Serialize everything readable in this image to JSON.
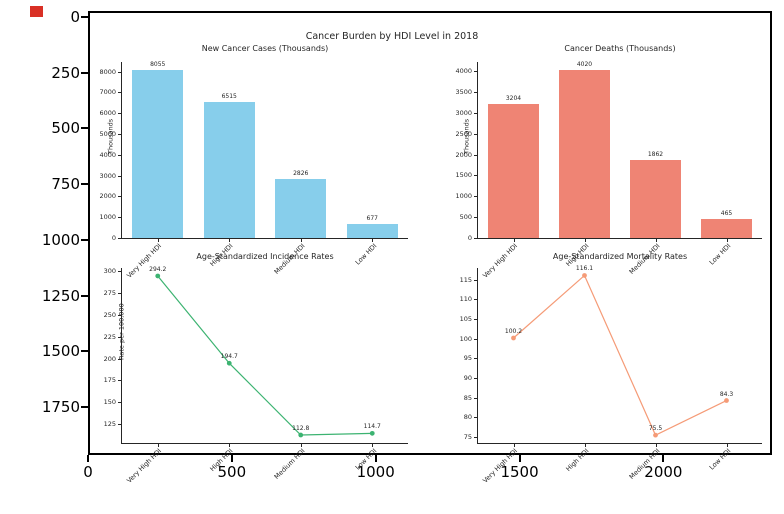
{
  "window": {
    "red_marker": "notebook-output-marker",
    "red_marker_color": "#d93025"
  },
  "figure": {
    "suptitle": "Cancer Burden by HDI Level in 2018",
    "outer_axes": {
      "x_tick_labels": [
        "0",
        "500",
        "1000",
        "1500",
        "2000"
      ],
      "y_tick_labels": [
        "0",
        "250",
        "500",
        "750",
        "1000",
        "1250",
        "1500",
        "1750"
      ]
    }
  },
  "chart_data": [
    {
      "type": "bar",
      "title": "New Cancer Cases (Thousands)",
      "ylabel": "Thousands",
      "categories": [
        "Very High HDI",
        "High HDI",
        "Medium HDI",
        "Low HDI"
      ],
      "values": [
        8055,
        6515,
        2826,
        677
      ],
      "value_labels": [
        "8055",
        "6515",
        "2826",
        "677"
      ],
      "yticks": [
        0,
        1000,
        2000,
        3000,
        4000,
        5000,
        6000,
        7000,
        8000
      ],
      "ylim": [
        0,
        8458
      ],
      "color": "#87CEEB",
      "grid": false,
      "legend": null
    },
    {
      "type": "bar",
      "title": "Cancer Deaths (Thousands)",
      "ylabel": "Thousands",
      "categories": [
        "Very High HDI",
        "High HDI",
        "Medium HDI",
        "Low HDI"
      ],
      "values": [
        3204,
        4020,
        1862,
        465
      ],
      "value_labels": [
        "3204",
        "4020",
        "1862",
        "465"
      ],
      "yticks": [
        0,
        500,
        1000,
        1500,
        2000,
        2500,
        3000,
        3500,
        4000
      ],
      "ylim": [
        0,
        4221
      ],
      "color": "#EF8474",
      "grid": false,
      "legend": null
    },
    {
      "type": "line",
      "title": "Age-Standardized Incidence Rates",
      "ylabel": "Rate per 100,000",
      "categories": [
        "Very High HDI",
        "High HDI",
        "Medium HDI",
        "Low HDI"
      ],
      "values": [
        294.2,
        194.7,
        112.8,
        114.7
      ],
      "value_labels": [
        "294.2",
        "194.7",
        "112.8",
        "114.7"
      ],
      "yticks": [
        125,
        150,
        175,
        200,
        225,
        250,
        275,
        300
      ],
      "ylim": [
        103.7,
        303.3
      ],
      "color": "#3CB371",
      "grid": false,
      "legend": null
    },
    {
      "type": "line",
      "title": "Age-Standardized Mortality Rates",
      "ylabel": "",
      "categories": [
        "Very High HDI",
        "High HDI",
        "Medium HDI",
        "Low HDI"
      ],
      "values": [
        100.2,
        116.1,
        75.5,
        84.3
      ],
      "value_labels": [
        "100.2",
        "116.1",
        "75.5",
        "84.3"
      ],
      "yticks": [
        75,
        80,
        85,
        90,
        95,
        100,
        105,
        110,
        115
      ],
      "ylim": [
        73.5,
        118.0
      ],
      "color": "#F59B77",
      "grid": false,
      "legend": null
    }
  ]
}
